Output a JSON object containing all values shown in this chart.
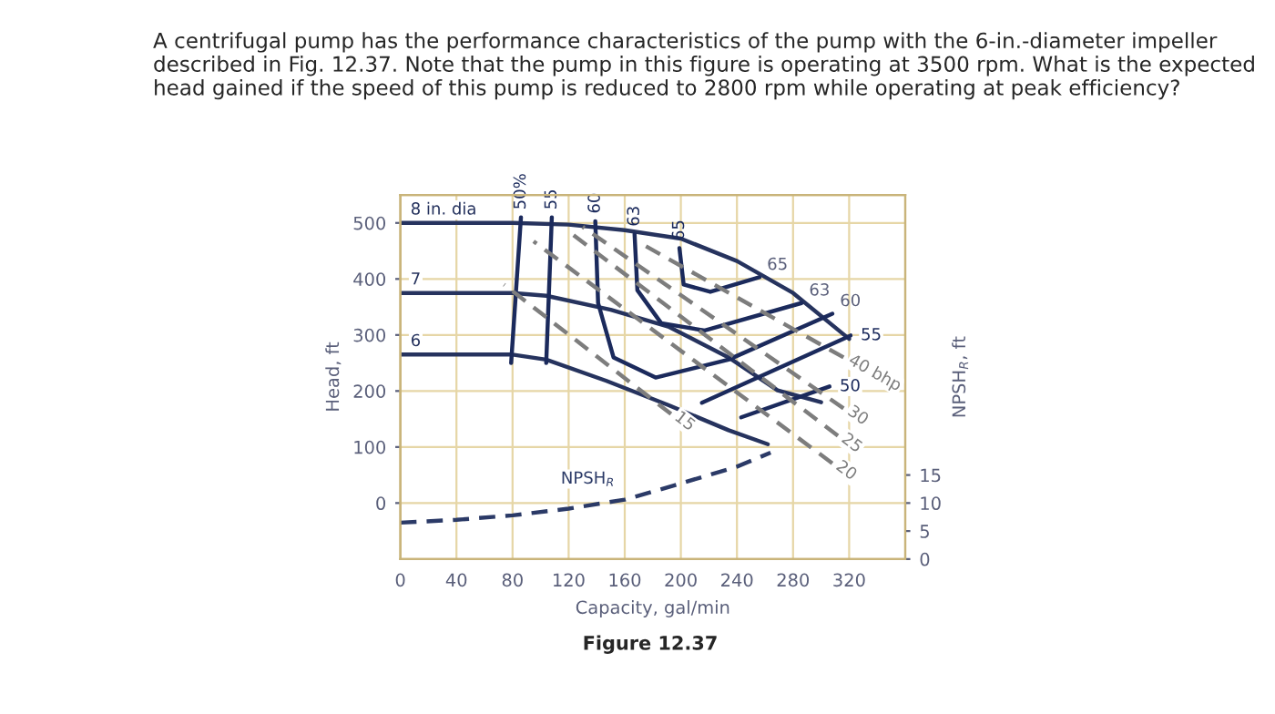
{
  "chart_data": {
    "type": "line",
    "title": "A centrifugal pump has the performance characteristics of the pump with the 6-in.-diameter impeller described in Fig. 12.37. Note that the pump in this figure is operating at 3500 rpm. What is the expected head gained if the speed of this pump is reduced to 2800 rpm while operating at peak efficiency?",
    "xlabel": "Capacity, gal/min",
    "ylabel": "Head, ft",
    "y2label": "NPSH$_{R}$, ft",
    "xlim": [
      0,
      360
    ],
    "xticks": [
      0,
      40,
      80,
      120,
      160,
      200,
      240,
      280,
      320
    ],
    "ylim": [
      -100,
      550
    ],
    "yticks": [
      0,
      100,
      200,
      300,
      400,
      500
    ],
    "y2lim": [
      0,
      65
    ],
    "y2ticks": [
      0,
      5,
      10,
      15
    ],
    "grid": true,
    "legend": false,
    "series": [
      {
        "name": "8 in. dia",
        "color": "#26335e",
        "line_style": "solid",
        "x": [
          0,
          80,
          120,
          160,
          200,
          240,
          280,
          320
        ],
        "values": [
          500,
          500,
          497,
          487,
          472,
          432,
          375,
          293
        ]
      },
      {
        "name": "7",
        "color": "#26335e",
        "line_style": "solid",
        "x": [
          0,
          80,
          104,
          150,
          191,
          234,
          269,
          300
        ],
        "values": [
          375,
          375,
          370,
          345,
          315,
          260,
          201,
          180
        ]
      },
      {
        "name": "6",
        "color": "#26335e",
        "line_style": "solid",
        "x": [
          0,
          80,
          104,
          147,
          191,
          234,
          262
        ],
        "values": [
          265,
          265,
          256,
          218,
          175,
          130,
          105
        ]
      },
      {
        "name": "50%",
        "color": "#1b2a5c",
        "line_style": "solid",
        "x": [
          86,
          79
        ],
        "values": [
          510,
          250
        ]
      },
      {
        "name": "55",
        "color": "#1b2a5c",
        "line_style": "solid",
        "x": [
          108,
          104
        ],
        "values": [
          510,
          250
        ]
      },
      {
        "name": "60",
        "color": "#1b2a5c",
        "line_style": "solid",
        "x": [
          139,
          141,
          152,
          182,
          234,
          308
        ],
        "values": [
          503,
          357,
          260,
          224,
          256,
          338
        ]
      },
      {
        "name": "63",
        "color": "#1b2a5c",
        "line_style": "solid",
        "x": [
          167,
          169,
          186,
          217,
          286
        ],
        "values": [
          480,
          380,
          321,
          308,
          357
        ]
      },
      {
        "name": "65",
        "color": "#1b2a5c",
        "line_style": "solid",
        "x": [
          199,
          202,
          221,
          256
        ],
        "values": [
          455,
          390,
          377,
          403
        ]
      },
      {
        "name": "55",
        "color": "#1b2a5c",
        "line_style": "solid",
        "x": [
          321,
          215
        ],
        "values": [
          299,
          179
        ]
      },
      {
        "name": "50",
        "color": "#1b2a5c",
        "line_style": "solid",
        "x": [
          306,
          243
        ],
        "values": [
          208,
          153
        ]
      },
      {
        "name": "15",
        "color": "#7d7d7d",
        "line_style": "dashed",
        "x": [
          193,
          74
        ],
        "values": [
          159,
          390
        ]
      },
      {
        "name": "20",
        "color": "#7d7d7d",
        "line_style": "dashed",
        "x": [
          308,
          95
        ],
        "values": [
          71,
          467
        ]
      },
      {
        "name": "25",
        "color": "#7d7d7d",
        "line_style": "dashed",
        "x": [
          312,
          121
        ],
        "values": [
          120,
          483
        ]
      },
      {
        "name": "30",
        "color": "#7d7d7d",
        "line_style": "dashed",
        "x": [
          316,
          130
        ],
        "values": [
          169,
          493
        ]
      },
      {
        "name": "40 bhp",
        "color": "#7d7d7d",
        "line_style": "dashed",
        "x": [
          316,
          169
        ],
        "values": [
          260,
          467
        ]
      },
      {
        "name": "NPSH$_{R}$",
        "color": "#2b3a67",
        "line_style": "dashed",
        "axis": "y2",
        "x": [
          0,
          40,
          80,
          120,
          160,
          200,
          240,
          264
        ],
        "values": [
          6.5,
          7,
          7.8,
          9,
          10.6,
          13.5,
          16.5,
          19
        ]
      }
    ],
    "annotations": [
      {
        "text": "65",
        "x": 256,
        "y": 403
      },
      {
        "text": "63",
        "x": 286,
        "y": 357
      },
      {
        "text": "60",
        "x": 308,
        "y": 338
      },
      "Figure 12.37"
    ]
  }
}
